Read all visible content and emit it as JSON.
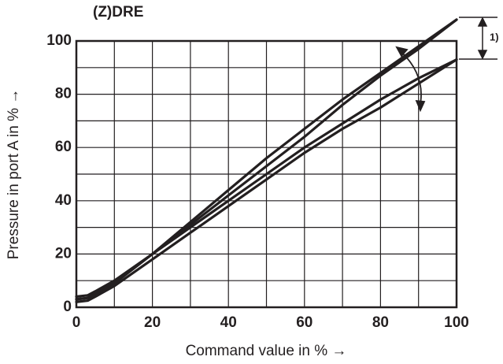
{
  "chart_data": {
    "type": "line",
    "title": "(Z)DRE",
    "x_label": "Command value in % →",
    "y_label": "Pressure in port A in % →",
    "annotation": "1)",
    "x": [
      0,
      3,
      5,
      10,
      20,
      30,
      40,
      50,
      60,
      70,
      80,
      90,
      100
    ],
    "series": [
      {
        "color": "#231f20",
        "values": [
          4,
          4.5,
          6,
          10,
          20,
          32,
          44,
          56,
          67,
          78,
          88,
          98,
          108
        ]
      },
      {
        "color": "#231f20",
        "values": [
          3,
          3.5,
          5,
          9,
          20,
          31,
          42,
          53,
          64,
          76,
          87,
          97,
          108
        ]
      },
      {
        "color": "#231f20",
        "values": [
          3,
          3.5,
          5,
          9,
          20,
          30,
          40,
          50,
          60,
          69,
          78,
          86,
          93
        ]
      },
      {
        "color": "#231f20",
        "values": [
          2,
          2.5,
          4,
          8,
          18,
          28,
          38,
          48,
          58,
          67,
          75,
          84,
          93
        ]
      }
    ],
    "xlim": [
      0,
      100
    ],
    "ylim": [
      0,
      100
    ],
    "xticks": [
      0,
      20,
      40,
      60,
      80,
      100
    ],
    "yticks": [
      0,
      20,
      40,
      60,
      80,
      100
    ],
    "xgrid_minor": [
      10,
      30,
      50,
      70,
      90
    ],
    "ygrid_minor": [
      10,
      30,
      50,
      70,
      90
    ],
    "grid": true
  }
}
